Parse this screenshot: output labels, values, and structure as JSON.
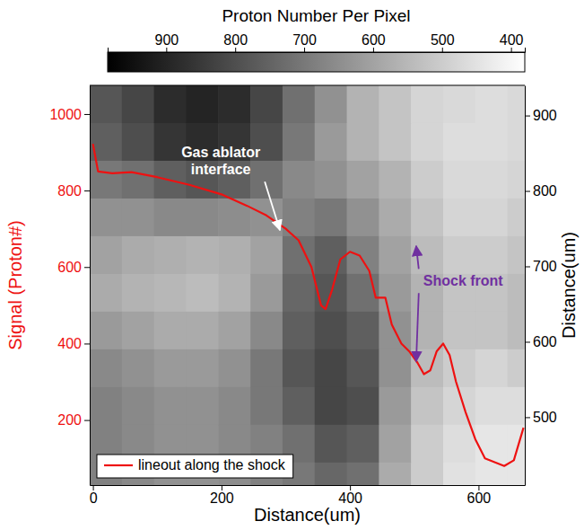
{
  "chart_data": {
    "type": "line",
    "xlabel": "Distance(um)",
    "ylabel": "Signal (Proton#)",
    "y2label": "Distance(um)",
    "xlim": [
      -5,
      672
    ],
    "xticks": [
      0,
      200,
      400,
      600
    ],
    "ylim": [
      30,
      1075
    ],
    "yticks": [
      200,
      400,
      600,
      800,
      1000
    ],
    "y2lim": [
      410,
      940
    ],
    "y2ticks": [
      500,
      600,
      700,
      800,
      900
    ],
    "legend": "lower left",
    "series": [
      {
        "name": "lineout along the shock",
        "color": "#ee1111",
        "x": [
          0,
          8,
          30,
          60,
          100,
          150,
          200,
          240,
          270,
          300,
          320,
          340,
          355,
          362,
          372,
          385,
          400,
          415,
          430,
          440,
          455,
          465,
          480,
          492,
          505,
          515,
          525,
          535,
          545,
          555,
          565,
          580,
          595,
          610,
          625,
          640,
          655,
          670
        ],
        "values": [
          922,
          850,
          845,
          848,
          835,
          815,
          790,
          760,
          735,
          700,
          670,
          600,
          500,
          490,
          540,
          620,
          640,
          630,
          590,
          520,
          520,
          450,
          400,
          380,
          350,
          320,
          330,
          380,
          400,
          370,
          300,
          220,
          150,
          100,
          90,
          80,
          95,
          180
        ]
      }
    ],
    "heatmap": {
      "axis": "y2",
      "x": [
        20,
        70,
        120,
        170,
        220,
        270,
        320,
        370,
        420,
        470,
        520,
        570,
        620,
        670
      ],
      "y": [
        915,
        865,
        815,
        765,
        715,
        665,
        615,
        565,
        515,
        465,
        415
      ],
      "z": [
        [
          780,
          820,
          880,
          900,
          880,
          820,
          720,
          640,
          560,
          520,
          480,
          470,
          460,
          470
        ],
        [
          760,
          800,
          860,
          880,
          860,
          800,
          700,
          620,
          560,
          520,
          480,
          460,
          460,
          470
        ],
        [
          700,
          720,
          760,
          780,
          760,
          720,
          660,
          640,
          600,
          560,
          500,
          470,
          470,
          480
        ],
        [
          640,
          640,
          660,
          660,
          650,
          640,
          680,
          700,
          640,
          580,
          520,
          480,
          480,
          500
        ],
        [
          600,
          580,
          570,
          560,
          570,
          600,
          720,
          760,
          680,
          600,
          540,
          500,
          500,
          520
        ],
        [
          580,
          560,
          550,
          540,
          560,
          620,
          740,
          780,
          720,
          620,
          560,
          520,
          520,
          540
        ],
        [
          620,
          600,
          580,
          580,
          600,
          660,
          760,
          800,
          760,
          640,
          560,
          520,
          520,
          540
        ],
        [
          660,
          640,
          620,
          620,
          640,
          700,
          780,
          820,
          780,
          640,
          540,
          500,
          480,
          500
        ],
        [
          680,
          660,
          640,
          640,
          660,
          700,
          760,
          820,
          800,
          620,
          520,
          480,
          460,
          460
        ],
        [
          680,
          660,
          640,
          640,
          660,
          680,
          720,
          780,
          760,
          600,
          500,
          460,
          440,
          440
        ],
        [
          680,
          660,
          640,
          640,
          650,
          680,
          700,
          740,
          720,
          580,
          500,
          450,
          440,
          440
        ]
      ]
    },
    "colorbar": {
      "title": "Proton Number Per Pixel",
      "lim": [
        985,
        380
      ],
      "ticks": [
        900,
        800,
        700,
        600,
        500,
        400
      ],
      "colors": [
        "#000000",
        "#ffffff"
      ]
    },
    "annotations": [
      {
        "text": "Gas ablator interface",
        "x": 199,
        "y": 839,
        "axis": "y2",
        "color": "#ffffff",
        "arrows": [
          [
            291,
            748
          ]
        ]
      },
      {
        "text": "Shock front",
        "x": 576,
        "y": 680,
        "axis": "y2",
        "color": "#7030a0",
        "arrows": [
          [
            503,
            727
          ],
          [
            503,
            574
          ]
        ]
      }
    ]
  }
}
